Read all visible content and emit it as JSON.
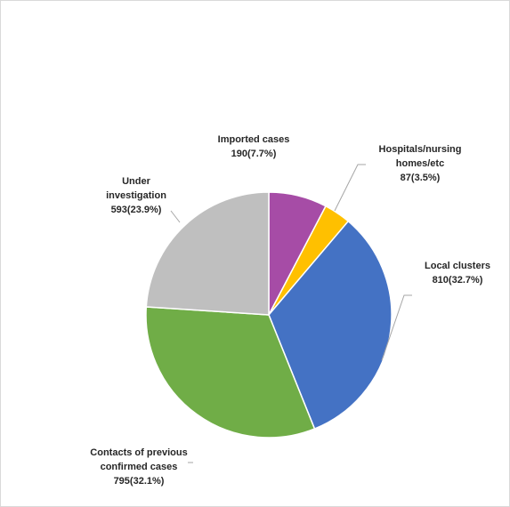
{
  "chart_data": {
    "type": "pie",
    "title": "",
    "slices": [
      {
        "label_lines": [
          "Imported cases"
        ],
        "value_text": "190(7.7%)",
        "value": 190,
        "percent": 7.7,
        "color": "#a64ca6"
      },
      {
        "label_lines": [
          "Hospitals/nursing",
          "homes/etc"
        ],
        "value_text": "87(3.5%)",
        "value": 87,
        "percent": 3.5,
        "color": "#ffc000"
      },
      {
        "label_lines": [
          "Local clusters"
        ],
        "value_text": "810(32.7%)",
        "value": 810,
        "percent": 32.7,
        "color": "#4472c4"
      },
      {
        "label_lines": [
          "Contacts of previous",
          "confirmed cases"
        ],
        "value_text": "795(32.1%)",
        "value": 795,
        "percent": 32.1,
        "color": "#70ad47"
      },
      {
        "label_lines": [
          "Under",
          "investigation"
        ],
        "value_text": "593(23.9%)",
        "value": 593,
        "percent": 23.9,
        "color": "#bfbfbf"
      }
    ],
    "start_angle": "12 o'clock",
    "direction": "clockwise",
    "legend": "none"
  }
}
